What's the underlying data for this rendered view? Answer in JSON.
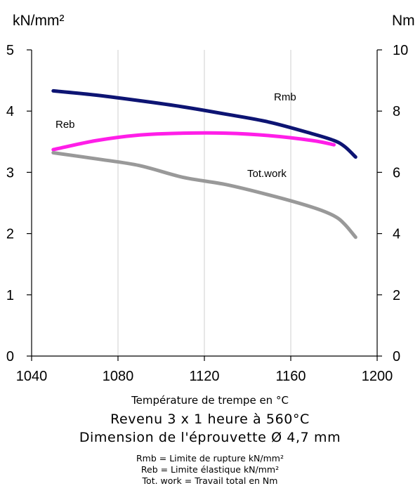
{
  "chart_data": {
    "type": "line",
    "left_axis_label": "kN/mm²",
    "right_axis_label": "Nm",
    "xlabel": "Température de trempe en °C",
    "xlim": [
      1040,
      1200
    ],
    "ylim_left": [
      0,
      5
    ],
    "ylim_right": [
      0,
      10
    ],
    "x_ticks": [
      1040,
      1080,
      1120,
      1160,
      1200
    ],
    "y_ticks_left": [
      0,
      1,
      2,
      3,
      4,
      5
    ],
    "y_ticks_right": [
      0,
      2,
      4,
      6,
      8,
      10
    ],
    "grid": "vertical",
    "series": [
      {
        "name": "Rmb",
        "axis": "left",
        "color": "#0d1473",
        "x": [
          1050,
          1070,
          1090,
          1110,
          1130,
          1150,
          1170,
          1180,
          1185,
          1190
        ],
        "y": [
          4.33,
          4.26,
          4.17,
          4.07,
          3.95,
          3.82,
          3.63,
          3.52,
          3.42,
          3.25
        ]
      },
      {
        "name": "Reb",
        "axis": "left",
        "color": "#ff1ee8",
        "x": [
          1050,
          1070,
          1090,
          1110,
          1130,
          1150,
          1170,
          1180
        ],
        "y": [
          3.37,
          3.52,
          3.61,
          3.64,
          3.64,
          3.6,
          3.52,
          3.45
        ]
      },
      {
        "name": "Tot.work",
        "axis": "right",
        "color": "#999999",
        "x": [
          1050,
          1070,
          1090,
          1110,
          1130,
          1150,
          1170,
          1180,
          1185,
          1190
        ],
        "y": [
          6.64,
          6.44,
          6.22,
          5.84,
          5.6,
          5.26,
          4.86,
          4.58,
          4.3,
          3.88
        ]
      }
    ],
    "annotations": [
      "Rmb",
      "Reb",
      "Tot.work"
    ]
  },
  "captions": {
    "xlabel": "Température de trempe en °C",
    "line1": "Revenu 3 x 1 heure à 560°C",
    "line2": "Dimension de l'éprouvette Ø 4,7 mm",
    "legend1": "Rmb = Limite de rupture kN/mm²",
    "legend2": "Reb = Limite élastique kN/mm²",
    "legend3": "Tot. work = Travail total en Nm"
  }
}
